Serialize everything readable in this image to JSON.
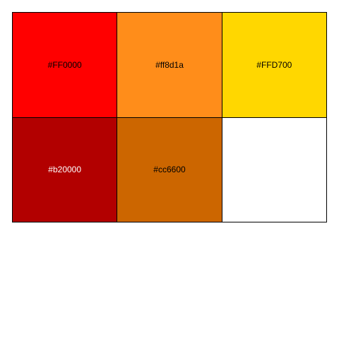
{
  "swatches": [
    {
      "label": "#FF0000",
      "color": "#FF0000",
      "text_color": "#000000"
    },
    {
      "label": "#ff8d1a",
      "color": "#FF8D1A",
      "text_color": "#000000"
    },
    {
      "label": "#FFD700",
      "color": "#FFD700",
      "text_color": "#000000"
    },
    {
      "label": "#b20000",
      "color": "#B20000",
      "text_color": "#ffffff"
    },
    {
      "label": "#cc6600",
      "color": "#CC6600",
      "text_color": "#000000"
    },
    {
      "label": "",
      "color": "#FFFFFF",
      "text_color": "#000000"
    }
  ]
}
